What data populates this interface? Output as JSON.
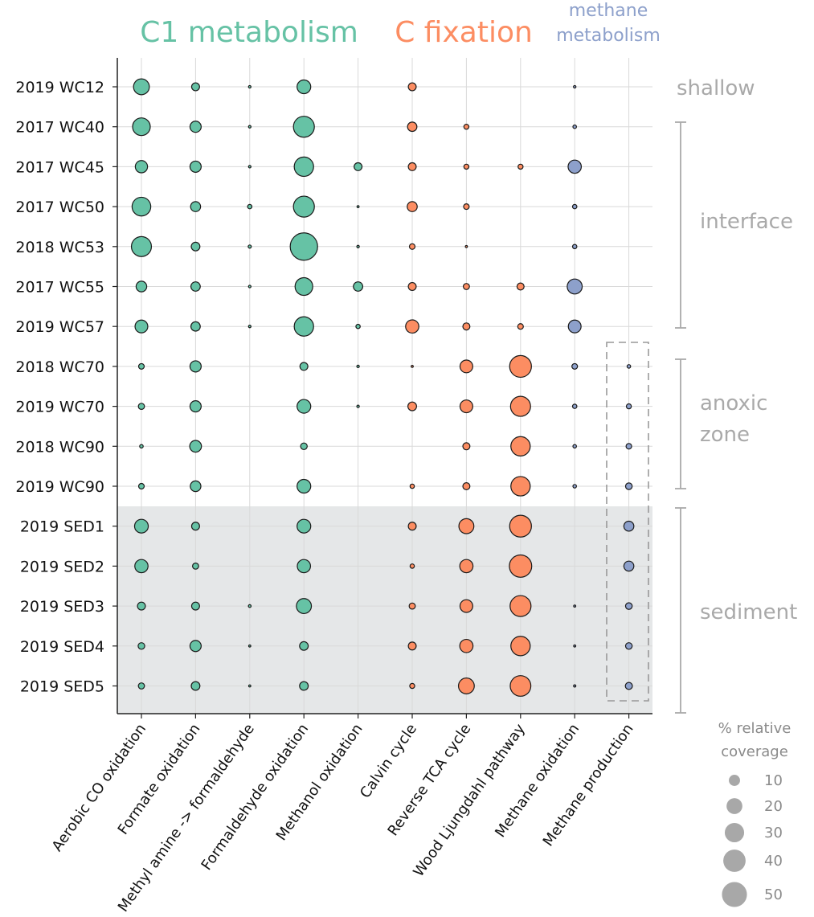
{
  "chart_data": {
    "type": "scatter",
    "subtype": "dot-matrix bubble plot",
    "size_legend_title": "% relative coverage",
    "size_legend_values": [
      10,
      20,
      30,
      40,
      50
    ],
    "groups": [
      {
        "label": "C1 metabolism",
        "color": "#66c2a5",
        "columns": [
          "Aerobic CO oxidation",
          "Formate oxidation",
          "Methyl amine -> formaldehyde",
          "Formaldehyde oxidation",
          "Methanol oxidation"
        ]
      },
      {
        "label": "C fixation",
        "color": "#fc8d62",
        "columns": [
          "Calvin cycle",
          "Reverse TCA cycle",
          "Wood Ljungdahl pathway"
        ]
      },
      {
        "label": "methane metabolism",
        "color": "#8da0cb",
        "columns": [
          "Methane oxidation",
          "Methane production"
        ]
      }
    ],
    "columns": [
      "Aerobic CO oxidation",
      "Formate oxidation",
      "Methyl amine -> formaldehyde",
      "Formaldehyde oxidation",
      "Methanol oxidation",
      "Calvin cycle",
      "Reverse TCA cycle",
      "Wood Ljungdahl pathway",
      "Methane oxidation",
      "Methane production"
    ],
    "samples": [
      "2019 WC12",
      "2017 WC40",
      "2017 WC45",
      "2017 WC50",
      "2018 WC53",
      "2017 WC55",
      "2019 WC57",
      "2018 WC70",
      "2019 WC70",
      "2018 WC90",
      "2019 WC90",
      "2019 SED1",
      "2019 SED2",
      "2019 SED3",
      "2019 SED4",
      "2019 SED5"
    ],
    "values": [
      [
        20,
        5,
        0.5,
        15,
        0,
        5,
        0,
        0,
        0.5,
        0
      ],
      [
        25,
        10,
        0.5,
        35,
        0,
        7,
        2,
        0,
        1,
        0
      ],
      [
        12,
        10,
        0.5,
        30,
        5,
        5,
        2,
        2,
        14,
        0
      ],
      [
        28,
        8,
        1.5,
        35,
        0.3,
        8,
        2.5,
        0,
        1.5,
        0
      ],
      [
        32,
        6,
        0.8,
        60,
        0.5,
        2.5,
        0.3,
        0,
        1.5,
        0
      ],
      [
        9,
        7,
        0.5,
        25,
        7,
        5,
        3,
        4,
        18,
        0
      ],
      [
        13,
        7,
        0.5,
        30,
        1.5,
        14,
        4,
        2.5,
        13,
        0
      ],
      [
        2.5,
        10,
        0,
        5,
        0.5,
        0.3,
        13,
        38,
        2.5,
        1
      ],
      [
        3,
        10,
        0,
        15,
        0.5,
        6,
        13,
        32,
        1.5,
        2
      ],
      [
        1,
        11,
        0,
        3.5,
        0,
        0,
        4,
        30,
        1,
        2.5
      ],
      [
        2.5,
        9,
        0,
        15,
        0,
        1.5,
        4,
        30,
        1,
        3.5
      ],
      [
        15,
        5,
        0,
        15,
        0,
        5,
        18,
        38,
        0,
        8
      ],
      [
        14,
        3,
        0,
        14,
        0,
        1.5,
        14,
        40,
        0,
        8
      ],
      [
        5,
        5,
        0.6,
        18,
        0,
        3,
        13,
        35,
        0.2,
        3.5
      ],
      [
        3.5,
        10,
        0.2,
        6,
        0,
        5,
        14,
        30,
        0.3,
        3.5
      ],
      [
        3,
        6,
        0.1,
        6,
        0,
        2,
        20,
        34,
        0.4,
        4
      ]
    ],
    "zones": [
      {
        "label": "shallow",
        "samples": [
          "2019 WC12"
        ]
      },
      {
        "label": "interface",
        "samples": [
          "2017 WC40",
          "2017 WC45",
          "2017 WC50",
          "2018 WC53",
          "2017 WC55",
          "2019 WC57"
        ]
      },
      {
        "label": "anoxic zone",
        "samples": [
          "2018 WC70",
          "2019 WC70",
          "2018 WC90",
          "2019 WC90"
        ]
      },
      {
        "label": "sediment",
        "samples": [
          "2019 SED1",
          "2019 SED2",
          "2019 SED3",
          "2019 SED4",
          "2019 SED5"
        ]
      }
    ],
    "highlighted_samples": [
      "2019 SED1",
      "2019 SED2",
      "2019 SED3",
      "2019 SED4",
      "2019 SED5"
    ],
    "highlighted_column_box": {
      "column": "Methane production",
      "samples": [
        "2018 WC70",
        "2019 WC70",
        "2018 WC90",
        "2019 WC90",
        "2019 SED1",
        "2019 SED2",
        "2019 SED3",
        "2019 SED4",
        "2019 SED5"
      ]
    },
    "grid": true,
    "legend_position": "bottom-right"
  }
}
